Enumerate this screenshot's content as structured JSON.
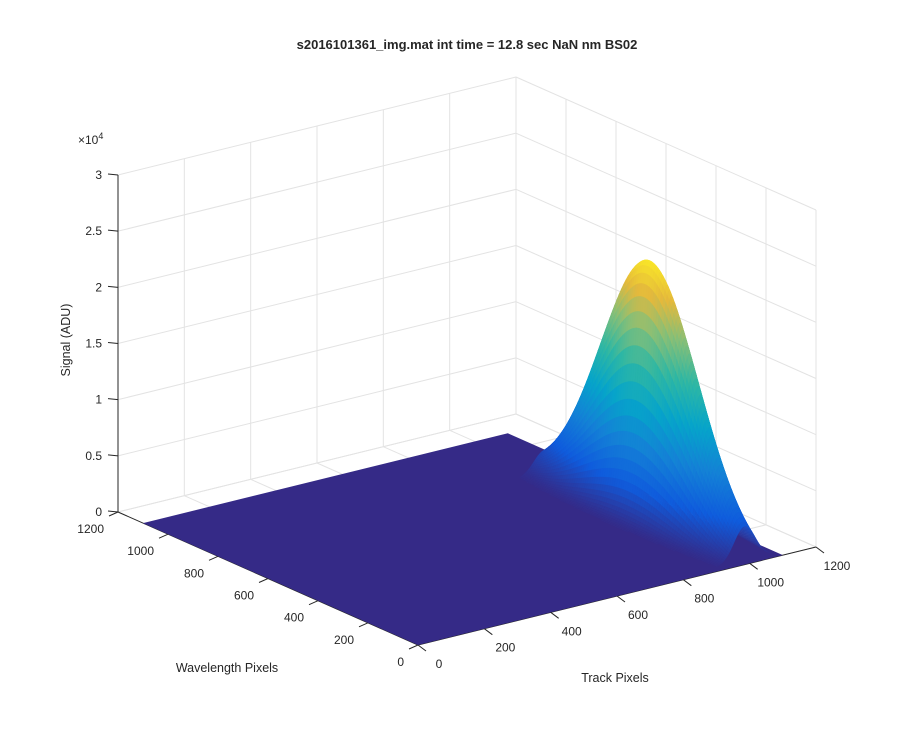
{
  "chart_data": {
    "type": "surface",
    "title": "s2016101361_img.mat int time = 12.8 sec  NaN nm BS02",
    "xlabel": "Track Pixels",
    "ylabel": "Wavelength Pixels",
    "zlabel": "Signal (ADU)",
    "z_exponent_label": "×10",
    "z_exponent_power": "4",
    "xlim": [
      0,
      1200
    ],
    "ylim": [
      0,
      1200
    ],
    "zlim": [
      0,
      30000
    ],
    "x_ticks": [
      "0",
      "200",
      "400",
      "600",
      "800",
      "1000",
      "1200"
    ],
    "y_ticks": [
      "0",
      "200",
      "400",
      "600",
      "800",
      "1000",
      "1200"
    ],
    "z_ticks": [
      "0",
      "0.5",
      "1",
      "1.5",
      "2",
      "2.5",
      "3"
    ],
    "grid": true,
    "colormap": "parula",
    "baseline_signal": 0,
    "data_extent": {
      "x": [
        0,
        1100
      ],
      "y": [
        0,
        1100
      ]
    },
    "peak": {
      "x": 1000,
      "y": 400,
      "signal": 23000,
      "sigma_x": 32,
      "sigma_y": 190
    },
    "secondary_bump": {
      "x": 1100,
      "y": 1070,
      "signal": 700
    },
    "colors": {
      "low": "#352a87",
      "mid": "#0f5cdd",
      "teal": "#1ab3a4",
      "high": "#f9d22a"
    }
  }
}
